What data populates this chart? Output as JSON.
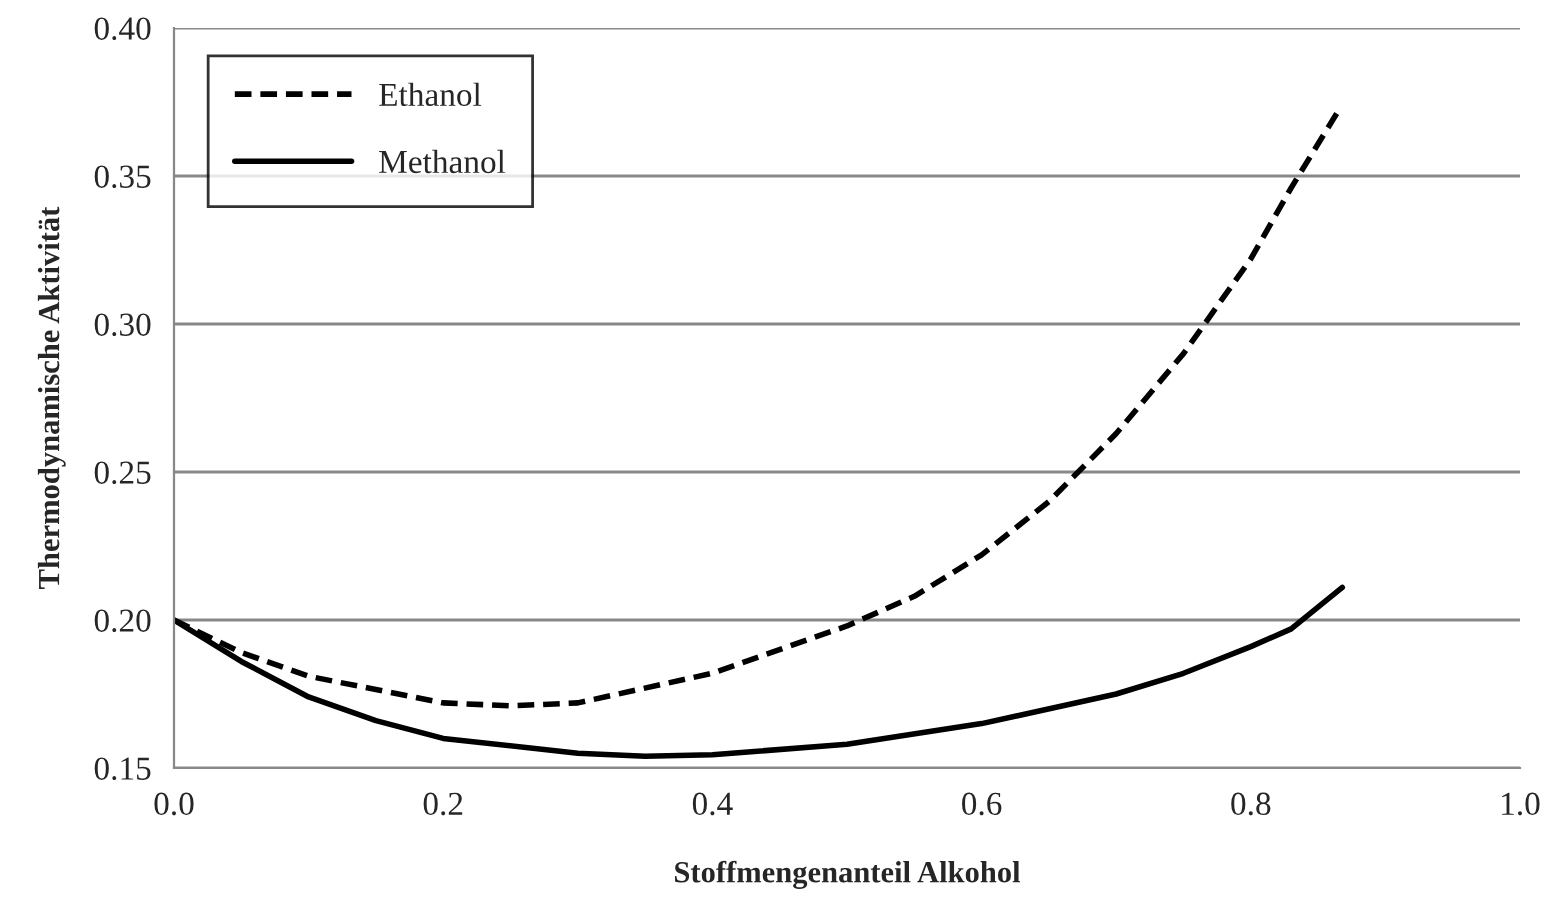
{
  "chart_data": {
    "type": "line",
    "xlabel": "Stoffmengenanteil Alkohol",
    "ylabel": "Thermodynamische Aktivität",
    "xlim": [
      0,
      1
    ],
    "xticks": [
      {
        "value": 0,
        "label": "0.0"
      },
      0.2,
      0.4,
      0.6,
      0.8,
      {
        "value": 1,
        "label": "1.0"
      }
    ],
    "ylim": [
      0.15,
      0.4
    ],
    "yticks": [
      {
        "value": 0.15,
        "label": "0.15"
      },
      {
        "value": 0.2,
        "label": "0.20"
      },
      {
        "value": 0.25,
        "label": "0.25"
      },
      {
        "value": 0.3,
        "label": "0.30"
      },
      {
        "value": 0.35,
        "label": "0.35"
      },
      {
        "value": 0.4,
        "label": "0.40"
      }
    ],
    "grid": "y",
    "legend": "top left",
    "marker": "none",
    "series": [
      {
        "name": "Ethanol",
        "color": "#000000",
        "line_style": "dashed",
        "x": [
          0,
          0.05,
          0.1,
          0.2,
          0.25,
          0.3,
          0.4,
          0.5,
          0.55,
          0.6,
          0.65,
          0.7,
          0.75,
          0.8,
          0.83,
          0.865
        ],
        "values": [
          0.2,
          0.189,
          0.181,
          0.172,
          0.171,
          0.172,
          0.182,
          0.198,
          0.208,
          0.222,
          0.24,
          0.263,
          0.29,
          0.322,
          0.346,
          0.372
        ]
      },
      {
        "name": "Methanol",
        "color": "#000000",
        "line_style": "solid",
        "x": [
          0,
          0.05,
          0.1,
          0.15,
          0.2,
          0.3,
          0.35,
          0.4,
          0.5,
          0.6,
          0.7,
          0.75,
          0.8,
          0.83,
          0.868
        ],
        "values": [
          0.2,
          0.186,
          0.174,
          0.166,
          0.16,
          0.155,
          0.154,
          0.1545,
          0.158,
          0.165,
          0.175,
          0.182,
          0.191,
          0.197,
          0.211
        ]
      }
    ]
  }
}
